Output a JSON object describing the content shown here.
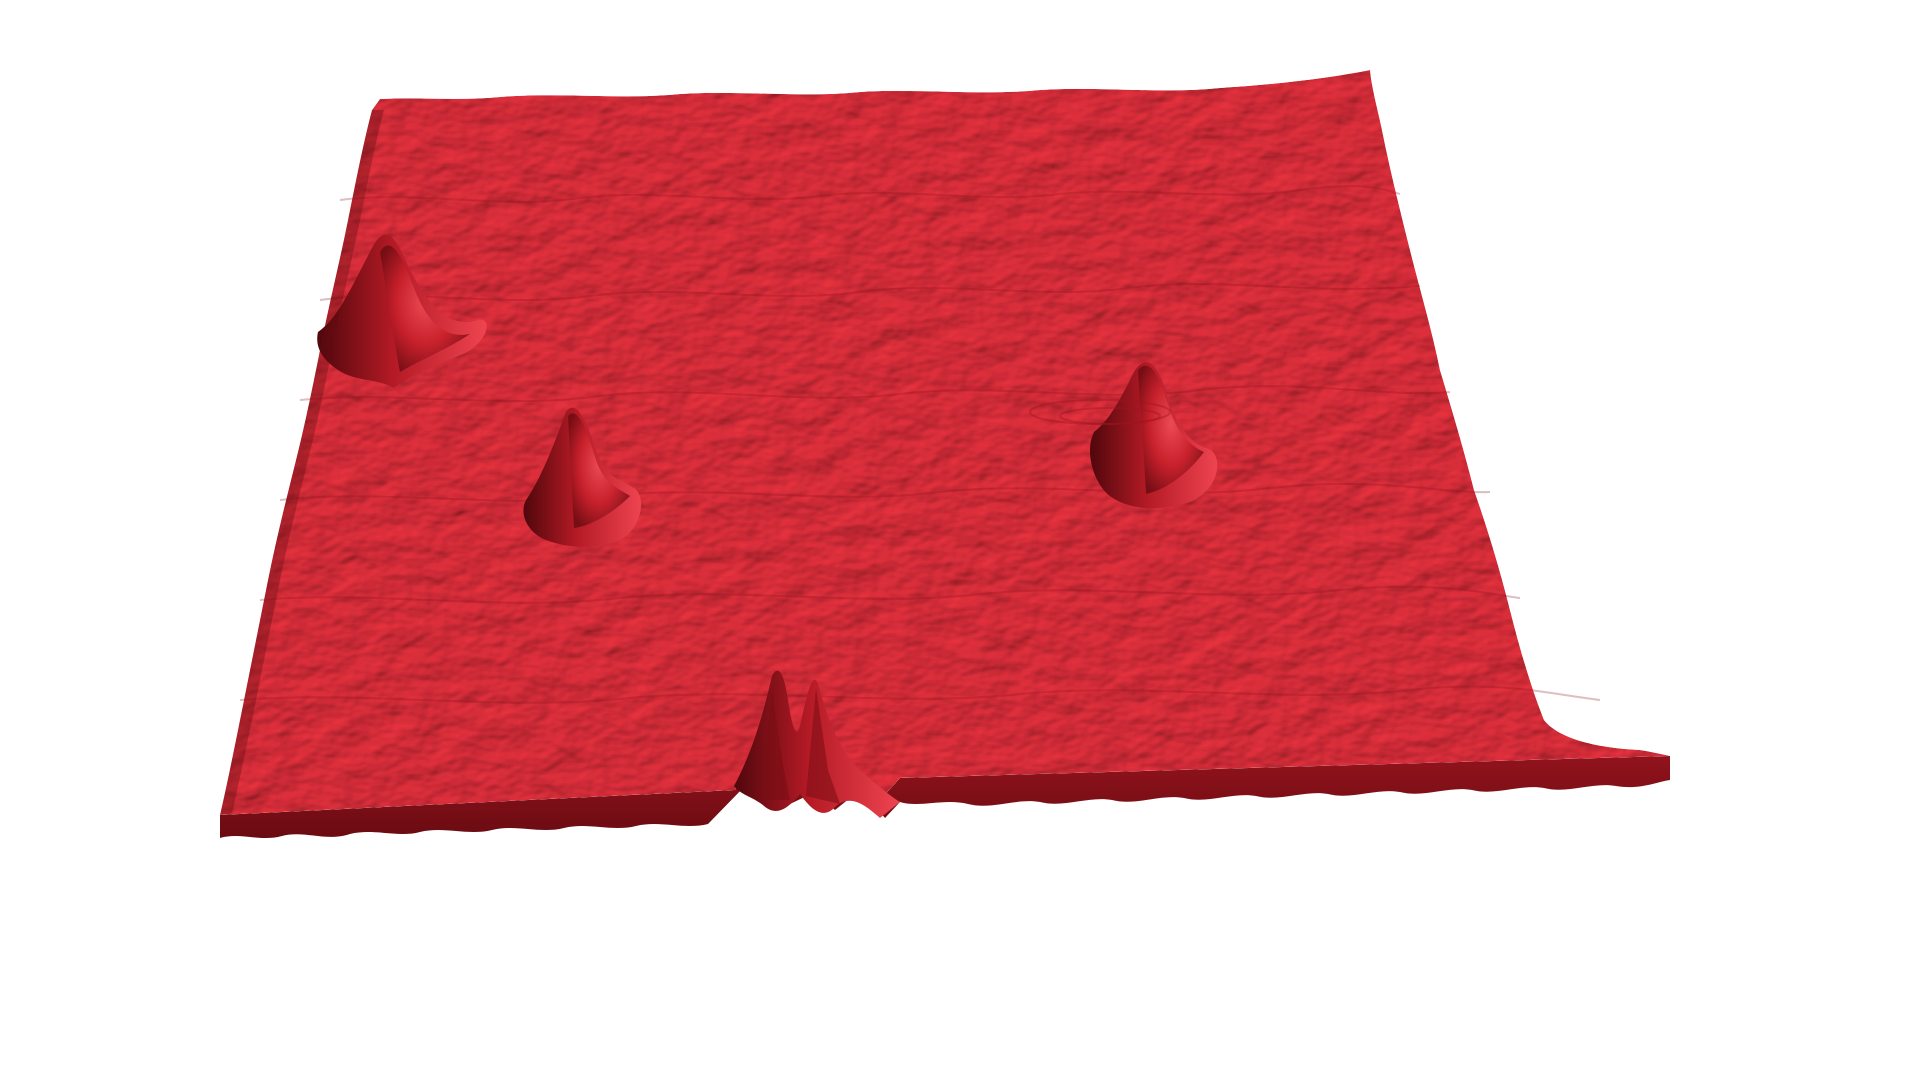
{
  "scene": {
    "description_visible_text": "",
    "colors": {
      "background": "#ffffff",
      "surface_top": "#ec3340",
      "surface_light": "#f65a63",
      "surface_shadow": "#9e1620",
      "surface_edge": "#7f1018",
      "surface_deep_shadow": "#5a0a10"
    },
    "peaks": [
      {
        "name": "peak-upper-left"
      },
      {
        "name": "peak-mid-left"
      },
      {
        "name": "peak-right"
      },
      {
        "name": "peak-front-edge"
      }
    ]
  }
}
